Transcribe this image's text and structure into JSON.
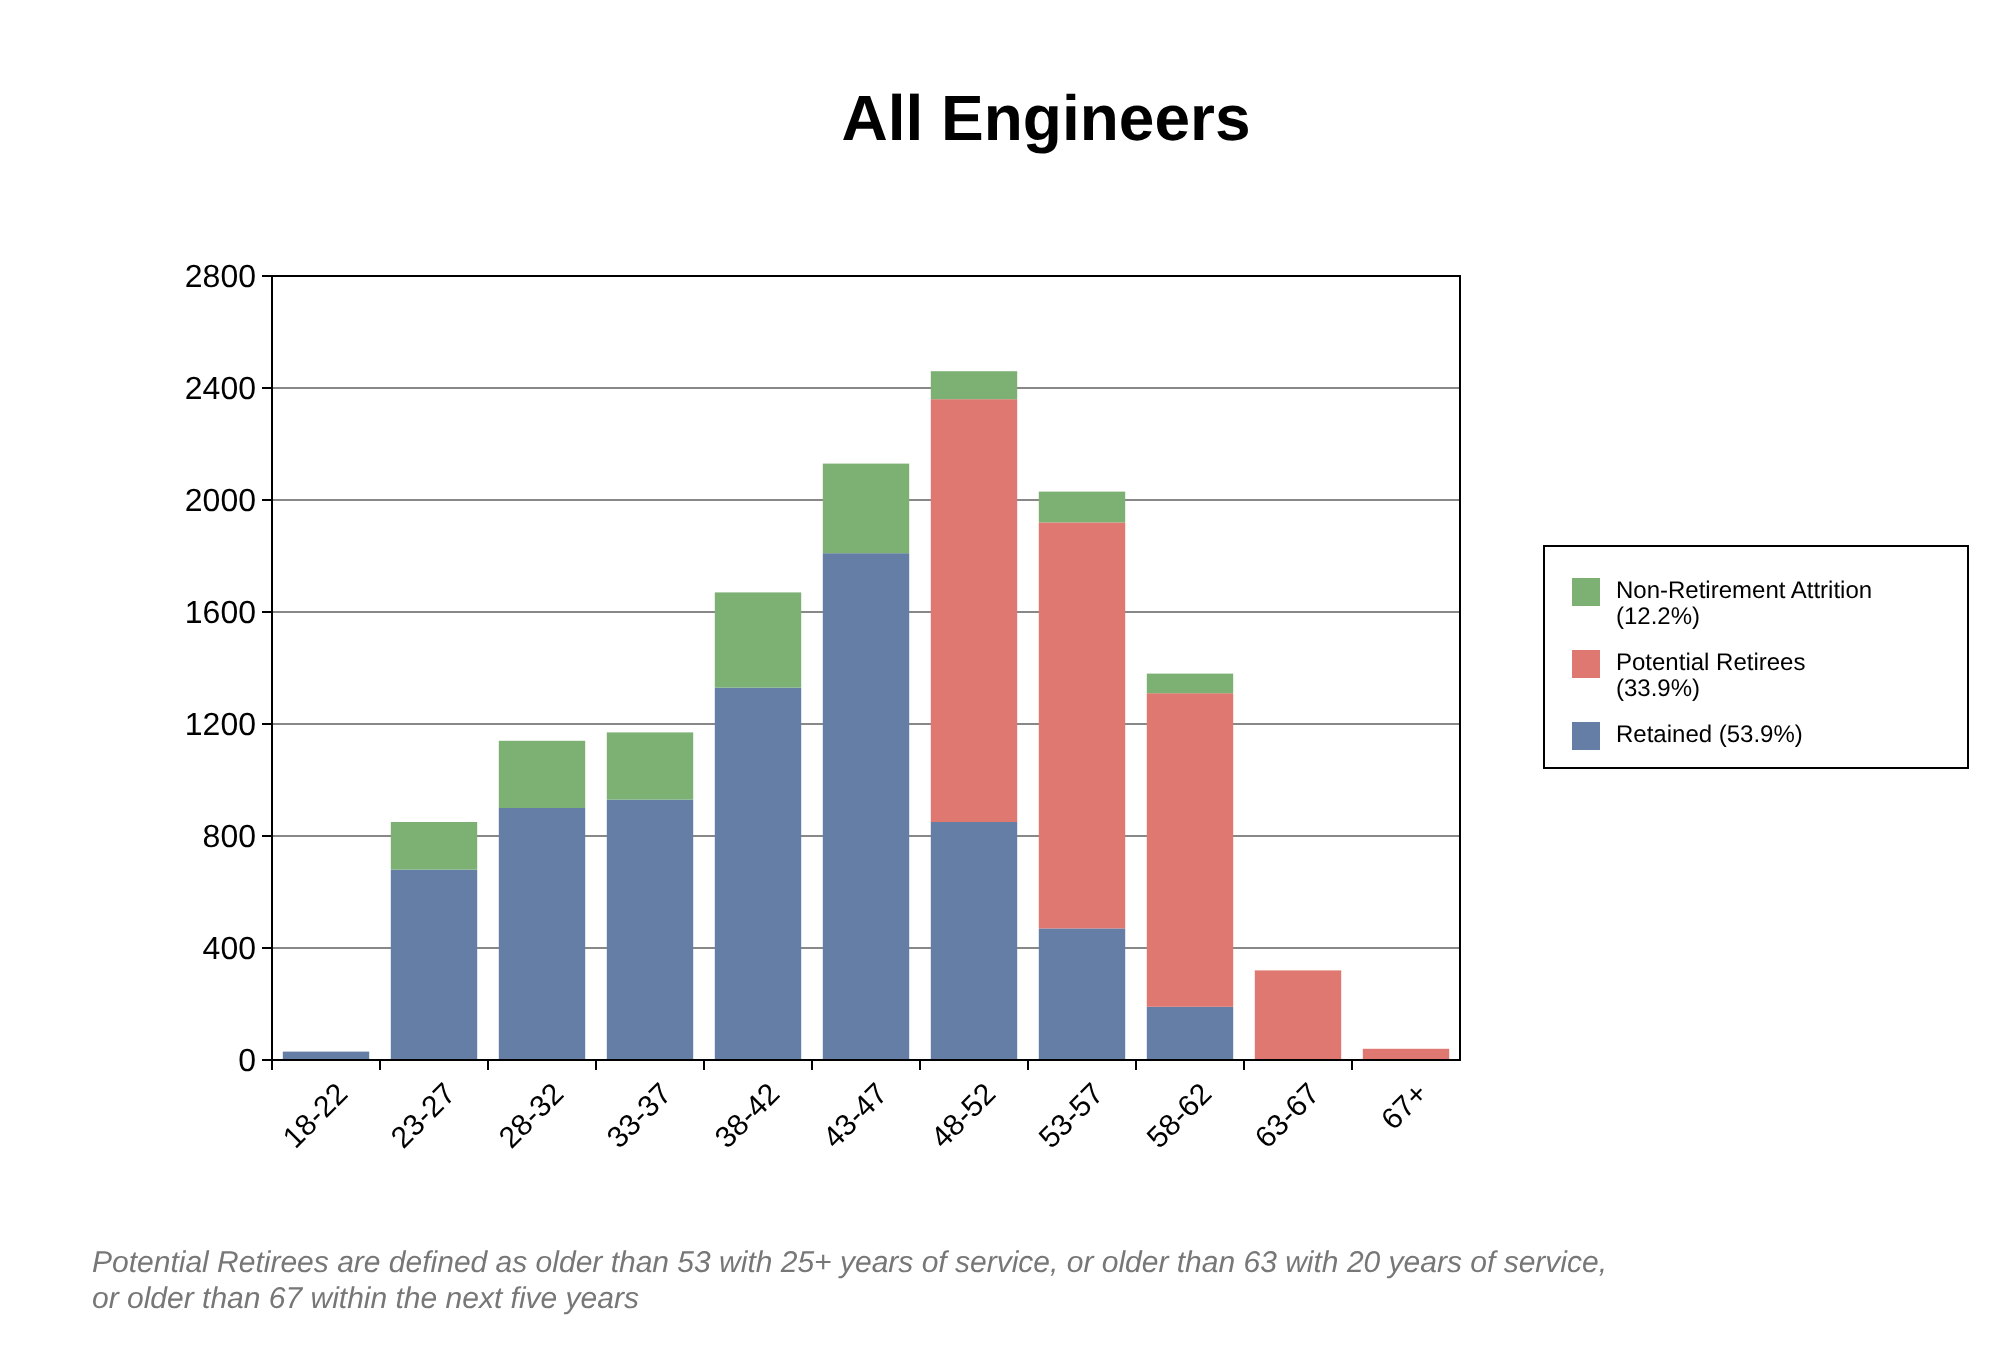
{
  "chart_data": {
    "type": "bar",
    "title": "All Engineers",
    "categories": [
      "18-22",
      "23-27",
      "28-32",
      "33-37",
      "38-42",
      "43-47",
      "48-52",
      "53-57",
      "58-62",
      "63-67",
      "67+"
    ],
    "stacked": true,
    "series": [
      {
        "name": "Retained (53.9%)",
        "color": "#657ea6",
        "values": [
          30,
          680,
          900,
          930,
          1330,
          1810,
          850,
          470,
          190,
          0,
          0
        ]
      },
      {
        "name": "Potential Retirees (33.9%)",
        "color": "#df7870",
        "values": [
          0,
          0,
          0,
          0,
          0,
          0,
          1510,
          1450,
          1120,
          320,
          40
        ]
      },
      {
        "name": "Non-Retirement Attrition (12.2%)",
        "color": "#7db174",
        "values": [
          0,
          170,
          240,
          240,
          340,
          320,
          100,
          110,
          70,
          0,
          0
        ]
      }
    ],
    "ylim": [
      0,
      2800
    ],
    "yticks": [
      0,
      400,
      800,
      1200,
      1600,
      2000,
      2400,
      2800
    ],
    "grid": "y",
    "legend": "right",
    "annotations": [
      "Potential Retirees are defined as older than 53 with 25+ years of service, or older than 63 with 20 years of service, or older than 67 within the next five years"
    ]
  }
}
